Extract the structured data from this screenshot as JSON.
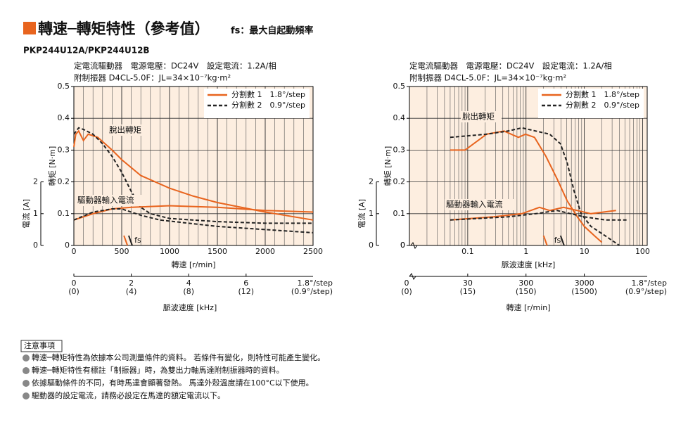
{
  "header": {
    "title": "轉速─轉矩特性（參考值）",
    "subtitle": "fs：最大自起動頻率",
    "model": "PKP244U12A/PKP244U12B"
  },
  "chart_data": [
    {
      "type": "line",
      "conditions": [
        "定電流驅動器　電源電壓：DC24V　設定電流：1.2A/相",
        "附制振器 D4CL-5.0F：JL=34×10⁻⁷kg·m²"
      ],
      "x_label": "轉速 [r/min]",
      "y_label": "轉矩 [N·m]",
      "y2_label": "電流 [A]",
      "xlim": [
        0,
        2500
      ],
      "xticks": [
        0,
        500,
        1000,
        1500,
        2000,
        2500
      ],
      "x_scale": "linear",
      "ylim": [
        0,
        0.5
      ],
      "yticks": [
        0,
        0.1,
        0.2,
        0.3,
        0.4,
        0.5
      ],
      "y2lim": [
        0,
        5
      ],
      "y2ticks": [
        0,
        1,
        2
      ],
      "grid": true,
      "background": "#fdeee0",
      "x2": {
        "label": "脈波速度 [kHz]",
        "lim": [
          0,
          8.333
        ],
        "ticks": [
          0,
          2,
          4,
          6
        ],
        "scale": "linear",
        "tick_labels_2": [
          "(0)",
          "(4)",
          "(8)",
          "(12)"
        ],
        "unit_labels": [
          "1.8°/step",
          "(0.9°/step)"
        ]
      },
      "annotations": [
        "脫出轉矩",
        "驅動器輸入電流"
      ],
      "fs": {
        "label": "fs",
        "x": [
          560,
          610
        ],
        "colors": [
          "#e8641e",
          "#222222"
        ]
      },
      "series": [
        {
          "name": "分割數 1　1.8°/step",
          "color": "#e8641e",
          "style": "solid",
          "x": [
            0,
            20,
            50,
            100,
            150,
            250,
            400,
            500,
            700,
            1000,
            1250,
            1500,
            2000,
            2500
          ],
          "values": [
            0.31,
            0.35,
            0.36,
            0.33,
            0.35,
            0.34,
            0.3,
            0.27,
            0.22,
            0.18,
            0.155,
            0.135,
            0.105,
            0.08
          ]
        },
        {
          "name": "分割數 2　0.9°/step",
          "color": "#222222",
          "style": "dashed",
          "x": [
            0,
            50,
            100,
            200,
            300,
            400,
            500,
            600,
            700,
            800,
            1000,
            1500,
            2000,
            2500
          ],
          "values": [
            0.35,
            0.37,
            0.365,
            0.35,
            0.32,
            0.28,
            0.23,
            0.17,
            0.12,
            0.1,
            0.085,
            0.075,
            0.07,
            0.07
          ]
        },
        {
          "color": "#e8641e",
          "style": "solid",
          "axis": "y2",
          "x": [
            0,
            200,
            400,
            600,
            1000,
            1500,
            2000,
            2500
          ],
          "values": [
            0.8,
            1.0,
            1.15,
            1.2,
            1.25,
            1.2,
            1.1,
            1.05
          ]
        },
        {
          "color": "#222222",
          "style": "dashed",
          "axis": "y2",
          "x": [
            0,
            200,
            400,
            500,
            700,
            900,
            1200,
            1500,
            2000,
            2500
          ],
          "values": [
            0.8,
            1.05,
            1.15,
            1.15,
            0.95,
            0.8,
            0.7,
            0.6,
            0.5,
            0.4
          ]
        }
      ]
    },
    {
      "type": "line",
      "conditions": [
        "定電流驅動器　電源電壓：DC24V　設定電流：1.2A/相",
        "附制振器 D4CL-5.0F：JL=34×10⁻⁷kg·m²"
      ],
      "x_label": "脈波速度 [kHz]",
      "y_label": "轉矩 [N·m]",
      "y2_label": "電流 [A]",
      "xlim": [
        0.01,
        120
      ],
      "xticks": [
        0.1,
        1,
        10,
        100
      ],
      "x_scale": "log",
      "x_break_label": "0",
      "ylim": [
        0,
        0.5
      ],
      "yticks": [
        0,
        0.1,
        0.2,
        0.3,
        0.4,
        0.5
      ],
      "y2lim": [
        0,
        5
      ],
      "y2ticks": [
        0,
        1,
        2
      ],
      "grid": true,
      "background": "#fdeee0",
      "x2": {
        "label": "轉速 [r/min]",
        "lim": [
          3,
          36000
        ],
        "ticks": [
          30,
          300,
          3000
        ],
        "scale": "log",
        "tick_labels_2": [
          "(15)",
          "(150)",
          "(1500)"
        ],
        "break_labels": [
          "0",
          "(0)"
        ],
        "unit_labels": [
          "1.8°/step",
          "(0.9°/step)"
        ]
      },
      "annotations": [
        "脫出轉矩",
        "驅動器輸入電流"
      ],
      "fs": {
        "label": "fs",
        "x": [
          2.3,
          4.5
        ],
        "colors": [
          "#e8641e",
          "#222222"
        ]
      },
      "series": [
        {
          "name": "分割數 1　1.8°/step",
          "color": "#e8641e",
          "style": "solid",
          "x": [
            0.05,
            0.09,
            0.21,
            0.42,
            0.74,
            0.98,
            1.4,
            2.2,
            3.4,
            5.1,
            7.6,
            10,
            15,
            20
          ],
          "values": [
            0.3,
            0.3,
            0.35,
            0.36,
            0.34,
            0.35,
            0.34,
            0.28,
            0.21,
            0.14,
            0.09,
            0.06,
            0.03,
            0.01
          ]
        },
        {
          "name": "分割數 2　0.9°/step",
          "color": "#222222",
          "style": "dashed",
          "x": [
            0.05,
            0.21,
            0.49,
            0.85,
            1.47,
            2.55,
            3.9,
            5.1,
            6.7,
            8.8,
            13,
            23,
            40
          ],
          "values": [
            0.34,
            0.35,
            0.36,
            0.37,
            0.36,
            0.35,
            0.32,
            0.26,
            0.17,
            0.1,
            0.06,
            0.03,
            0
          ]
        },
        {
          "color": "#e8641e",
          "style": "solid",
          "axis": "y2",
          "x": [
            0.05,
            0.28,
            0.85,
            1.7,
            2.55,
            4.4,
            7.6,
            13,
            35
          ],
          "values": [
            0.8,
            0.9,
            1.0,
            1.2,
            1.1,
            1.2,
            1.1,
            1.0,
            1.1
          ]
        },
        {
          "color": "#222222",
          "style": "dashed",
          "axis": "y2",
          "x": [
            0.05,
            0.49,
            1.47,
            3.4,
            5.8,
            10,
            23,
            53
          ],
          "values": [
            0.8,
            0.9,
            1.0,
            1.1,
            1.0,
            0.9,
            0.8,
            0.8
          ]
        }
      ]
    }
  ],
  "notes": {
    "title": "注意事項",
    "items": [
      "轉速─轉矩特性為依據本公司測量條件的資料。 若條件有變化，則特性可能產生變化。",
      "轉速─轉矩特性有標註「制振器」時，為雙出力軸馬達附制振器時的資料。",
      "依據驅動條件的不同，有時馬達會顯著發熱。 馬達外殼溫度請在100°C以下使用。",
      "驅動器的設定電流，請務必設定在馬達的額定電流以下。"
    ]
  }
}
